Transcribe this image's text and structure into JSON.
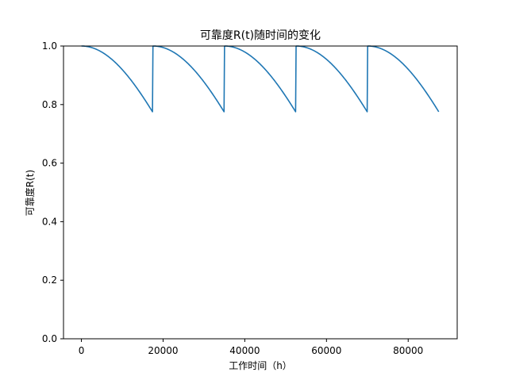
{
  "chart_data": {
    "type": "line",
    "title": "可靠度R(t)随时间的变化",
    "xlabel": "工作时间（h）",
    "ylabel": "可靠度R(t)",
    "xlim": [
      -4380,
      92000
    ],
    "ylim": [
      0,
      1.0
    ],
    "xticks": [
      0,
      20000,
      40000,
      60000,
      80000
    ],
    "xtick_labels": [
      "0",
      "20000",
      "40000",
      "60000",
      "80000"
    ],
    "yticks": [
      0.0,
      0.2,
      0.4,
      0.6,
      0.8,
      1.0
    ],
    "ytick_labels": [
      "0.0",
      "0.2",
      "0.4",
      "0.6",
      "0.8",
      "1.0"
    ],
    "grid": false,
    "series": [
      {
        "color": "#1f77b4",
        "cycle_length": 17520,
        "cycles": 5,
        "shape": "weibull",
        "beta": 2,
        "eta": 34500,
        "r_start": 1.0,
        "r_end": 0.774,
        "points": [
          [
            0,
            1.0
          ],
          [
            3000,
            0.992
          ],
          [
            6000,
            0.97
          ],
          [
            9000,
            0.934
          ],
          [
            12000,
            0.886
          ],
          [
            15000,
            0.828
          ],
          [
            17520,
            0.774
          ],
          [
            17520,
            1.0
          ],
          [
            20520,
            0.992
          ],
          [
            23520,
            0.97
          ],
          [
            26520,
            0.934
          ],
          [
            29520,
            0.886
          ],
          [
            32520,
            0.828
          ],
          [
            35040,
            0.774
          ],
          [
            35040,
            1.0
          ],
          [
            38040,
            0.992
          ],
          [
            41040,
            0.97
          ],
          [
            44040,
            0.934
          ],
          [
            47040,
            0.886
          ],
          [
            50040,
            0.828
          ],
          [
            52560,
            0.774
          ],
          [
            52560,
            1.0
          ],
          [
            55560,
            0.992
          ],
          [
            58560,
            0.97
          ],
          [
            61560,
            0.934
          ],
          [
            64560,
            0.886
          ],
          [
            67560,
            0.828
          ],
          [
            70080,
            0.774
          ],
          [
            70080,
            1.0
          ],
          [
            73080,
            0.992
          ],
          [
            76080,
            0.97
          ],
          [
            79080,
            0.934
          ],
          [
            82080,
            0.886
          ],
          [
            85080,
            0.828
          ],
          [
            87600,
            0.774
          ]
        ]
      }
    ]
  }
}
